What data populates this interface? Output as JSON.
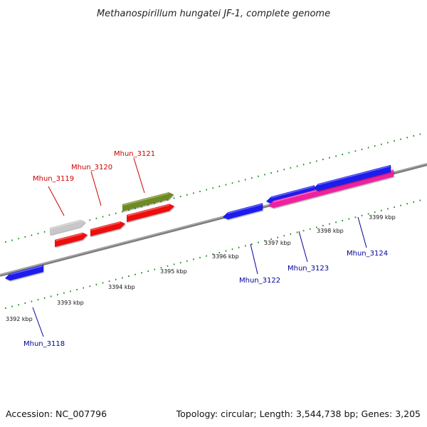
{
  "title": "Methanospirillum hungatei JF-1, complete genome",
  "footer": {
    "accession": "Accession: NC_007796",
    "topology": "Topology: circular; Length: 3,544,738 bp; Genes: 3,205"
  },
  "colors": {
    "backbone": "#808080",
    "tick": "#1a8a1a",
    "label_forward": "#cc0000",
    "label_reverse": "#000099"
  },
  "scale": {
    "kbp_labels": [
      "3392 kbp",
      "3393 kbp",
      "3394 kbp",
      "3395 kbp",
      "3396 kbp",
      "3397 kbp",
      "3398 kbp",
      "3399 kbp"
    ]
  },
  "genes": [
    {
      "label": "Mhun_3118",
      "strand": "reverse",
      "color": "#1a1aee"
    },
    {
      "label": "",
      "strand": "forward",
      "color": "#c8c8c8"
    },
    {
      "label": "Mhun_3119",
      "strand": "forward",
      "color": "#ee1111"
    },
    {
      "label": "Mhun_3120",
      "strand": "forward",
      "color": "#ee1111"
    },
    {
      "label": "",
      "strand": "forward",
      "color": "#ee1111"
    },
    {
      "label": "Mhun_3121",
      "strand": "forward",
      "color": "#6e8a22"
    },
    {
      "label": "Mhun_3122",
      "strand": "reverse",
      "color": "#1a1aee"
    },
    {
      "label": "",
      "strand": "reverse",
      "color": "#1a1aee"
    },
    {
      "label": "Mhun_3123",
      "strand": "reverse",
      "color": "#ee22a0"
    },
    {
      "label": "Mhun_3124",
      "strand": "reverse",
      "color": "#1a1aee"
    }
  ]
}
